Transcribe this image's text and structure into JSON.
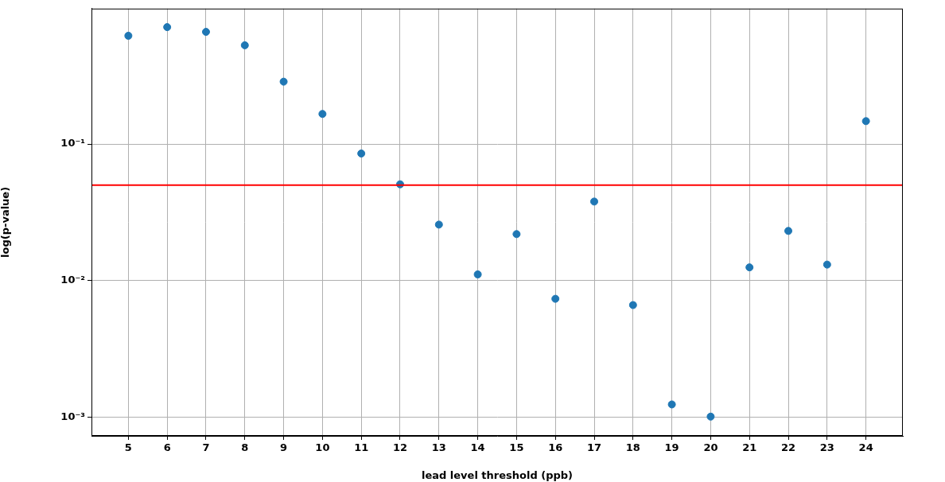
{
  "chart_data": {
    "type": "scatter",
    "x_label": "lead level threshold (ppb)",
    "y_label": "log(p-value)",
    "x": [
      5,
      6,
      7,
      8,
      9,
      10,
      11,
      12,
      13,
      14,
      15,
      16,
      17,
      18,
      19,
      20,
      21,
      22,
      23,
      24
    ],
    "values": [
      0.62,
      0.717,
      0.662,
      0.528,
      0.286,
      0.166,
      0.0852,
      0.0507,
      0.0257,
      0.0111,
      0.0219,
      0.00736,
      0.0379,
      0.00662,
      0.00124,
      0.00101,
      0.0125,
      0.0231,
      0.0131,
      0.147
    ],
    "color": "#1f77b4",
    "marker": "circle",
    "xlim": [
      4.05,
      24.95
    ],
    "xticks": [
      5,
      6,
      7,
      8,
      9,
      10,
      11,
      12,
      13,
      14,
      15,
      16,
      17,
      18,
      19,
      20,
      21,
      22,
      23,
      24
    ],
    "ylim": [
      0.00073,
      0.98
    ],
    "yticks": [
      {
        "value": 0.001,
        "label": "10⁻³"
      },
      {
        "value": 0.01,
        "label": "10⁻²"
      },
      {
        "value": 0.1,
        "label": "10⁻¹"
      }
    ],
    "log": "y",
    "grid": true,
    "reference_line": {
      "value": 0.05,
      "color": "#ff0000",
      "line_style": "solid"
    }
  }
}
